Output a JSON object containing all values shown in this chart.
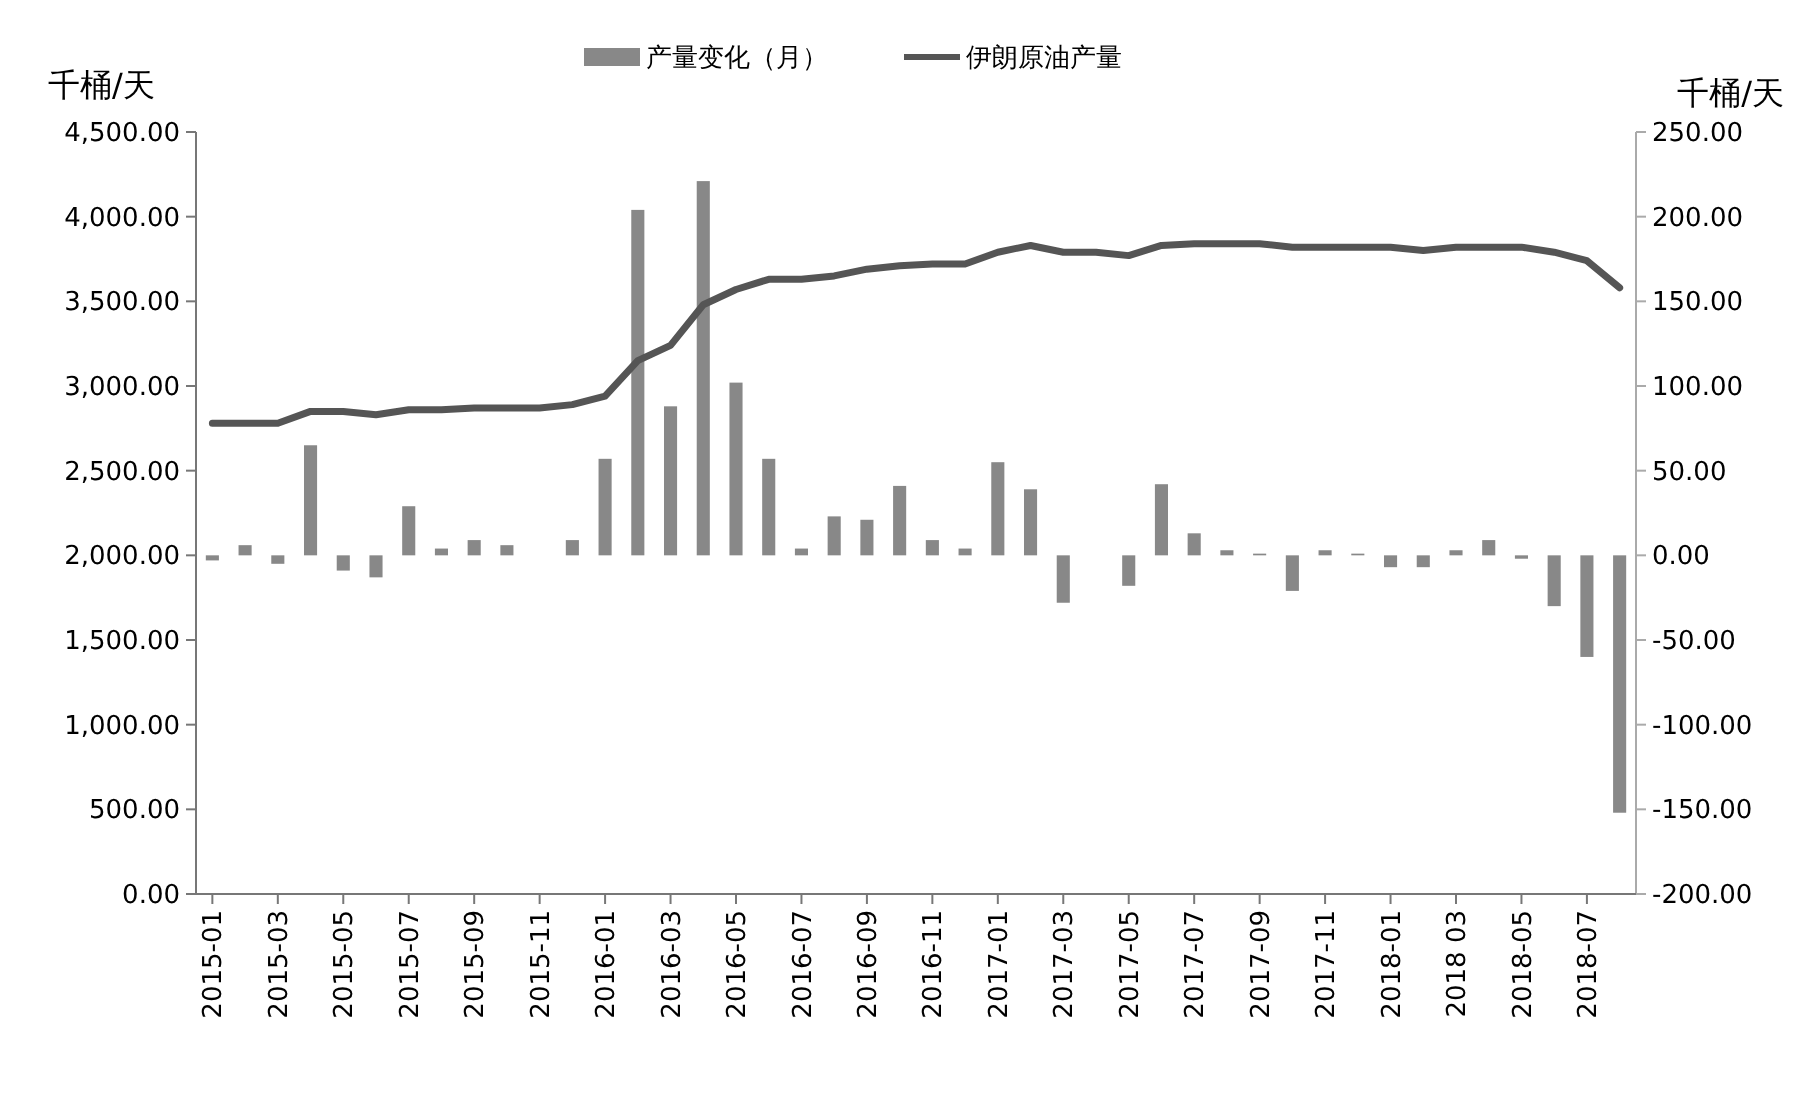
{
  "chart_data": {
    "type": "bar",
    "ylabel": "千桶/天",
    "y2label": "千桶/天",
    "categories": [
      "2015-01",
      null,
      "2015-03",
      null,
      "2015-05",
      null,
      "2015-07",
      null,
      "2015-09",
      null,
      "2015-11",
      null,
      "2016-01",
      null,
      "2016-03",
      null,
      "2016-05",
      null,
      "2016-07",
      null,
      "2016-09",
      null,
      "2016-11",
      null,
      "2017-01",
      null,
      "2017-03",
      null,
      "2017-05",
      null,
      "2017-07",
      null,
      "2017-09",
      null,
      "2017-11",
      null,
      "2018-01",
      null,
      "2018 03",
      null,
      "2018-05",
      null,
      "2018-07",
      null
    ],
    "series": [
      {
        "name": "产量变化（月）",
        "axis": "y2",
        "color": "#888888",
        "values": [
          -3,
          6,
          -5,
          65,
          -9,
          -13,
          29,
          4,
          9,
          6,
          0,
          9,
          57,
          204,
          88,
          221,
          102,
          57,
          4,
          23,
          21,
          41,
          9,
          4,
          55,
          39,
          -28,
          0,
          -18,
          42,
          13,
          3,
          1,
          -21,
          3,
          1,
          -7,
          -7,
          3,
          9,
          -2,
          -30,
          -60,
          -152
        ]
      },
      {
        "name": "伊朗原油产量",
        "type": "line",
        "axis": "y",
        "color": "#555555",
        "values": [
          2780,
          2780,
          2780,
          2850,
          2850,
          2830,
          2860,
          2860,
          2870,
          2870,
          2870,
          2890,
          2940,
          3150,
          3240,
          3480,
          3570,
          3630,
          3630,
          3650,
          3690,
          3710,
          3720,
          3720,
          3790,
          3830,
          3790,
          3790,
          3770,
          3830,
          3840,
          3840,
          3840,
          3820,
          3820,
          3820,
          3820,
          3800,
          3820,
          3820,
          3820,
          3790,
          3740,
          3580
        ]
      }
    ],
    "ylim": [
      0,
      4500
    ],
    "yticks": [
      {
        "value": 0,
        "label": "0.00"
      },
      {
        "value": 500,
        "label": "500.00"
      },
      {
        "value": 1000,
        "label": "1,000.00"
      },
      {
        "value": 1500,
        "label": "1,500.00"
      },
      {
        "value": 2000,
        "label": "2,000.00"
      },
      {
        "value": 2500,
        "label": "2,500.00"
      },
      {
        "value": 3000,
        "label": "3,000.00"
      },
      {
        "value": 3500,
        "label": "3,500.00"
      },
      {
        "value": 4000,
        "label": "4,000.00"
      },
      {
        "value": 4500,
        "label": "4,500.00"
      }
    ],
    "y2lim": [
      -200,
      250
    ],
    "y2ticks": [
      {
        "value": -200,
        "label": "-200.00"
      },
      {
        "value": -150,
        "label": "-150.00"
      },
      {
        "value": -100,
        "label": "-100.00"
      },
      {
        "value": -50,
        "label": "-50.00"
      },
      {
        "value": 0,
        "label": "0.00"
      },
      {
        "value": 50,
        "label": "50.00"
      },
      {
        "value": 100,
        "label": "100.00"
      },
      {
        "value": 150,
        "label": "150.00"
      },
      {
        "value": 200,
        "label": "200.00"
      },
      {
        "value": 250,
        "label": "250.00"
      }
    ],
    "legend": "top",
    "grid": false
  }
}
